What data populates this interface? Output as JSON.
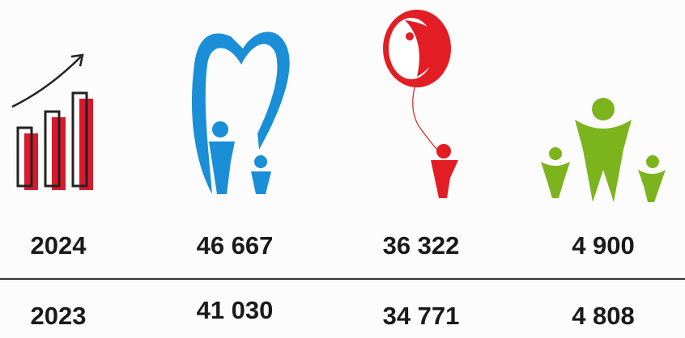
{
  "rows": [
    {
      "year": "2024",
      "values": [
        "46 667",
        "36 322",
        "4 900"
      ]
    },
    {
      "year": "2023",
      "values": [
        "41 030",
        "34 771",
        "4 808"
      ]
    }
  ]
}
